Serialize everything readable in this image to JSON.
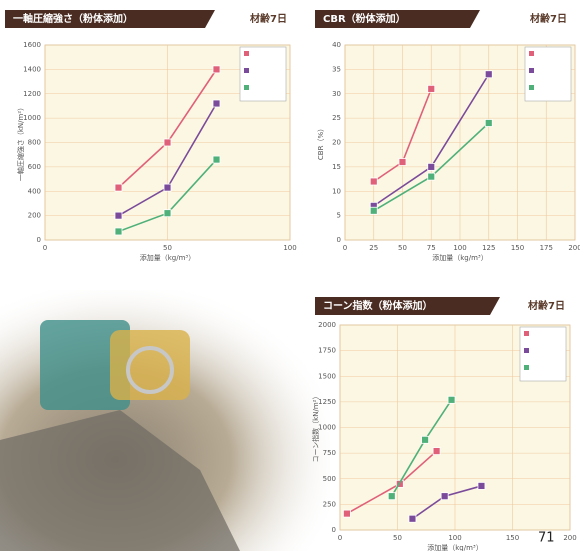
{
  "chart_data": [
    {
      "type": "line",
      "title": "一軸圧縮強さ（粉体添加）",
      "badge": "材齢7日",
      "ylabel": "一軸圧縮強さ（kN/m²）",
      "xlabel": "添加量（kg/m³）",
      "xlim": [
        0,
        100
      ],
      "xticks": [
        0,
        50,
        100
      ],
      "ylim": [
        0,
        1600
      ],
      "yticks": [
        0,
        200,
        400,
        600,
        800,
        1000,
        1200,
        1400,
        1600
      ],
      "grid": true,
      "series": [
        {
          "color": "#e0607a",
          "x": [
            30,
            50,
            70
          ],
          "values": [
            430,
            800,
            1400
          ]
        },
        {
          "color": "#7b4b9b",
          "x": [
            30,
            50,
            70
          ],
          "values": [
            200,
            430,
            1120
          ]
        },
        {
          "color": "#4fb07a",
          "x": [
            30,
            50,
            70
          ],
          "values": [
            70,
            220,
            660
          ]
        }
      ]
    },
    {
      "type": "line",
      "title": "CBR（粉体添加）",
      "badge": "材齢7日",
      "ylabel": "CBR（%）",
      "xlabel": "添加量（kg/m³）",
      "xlim": [
        0,
        200
      ],
      "xticks": [
        0,
        25,
        50,
        75,
        100,
        125,
        150,
        175,
        200
      ],
      "ylim": [
        0,
        40
      ],
      "yticks": [
        0,
        5,
        10,
        15,
        20,
        25,
        30,
        35,
        40
      ],
      "grid": true,
      "series": [
        {
          "color": "#e0607a",
          "x": [
            25,
            50,
            75
          ],
          "values": [
            12,
            16,
            31
          ]
        },
        {
          "color": "#7b4b9b",
          "x": [
            25,
            75,
            125
          ],
          "values": [
            7,
            15,
            34
          ]
        },
        {
          "color": "#4fb07a",
          "x": [
            25,
            75,
            125
          ],
          "values": [
            6,
            13,
            24
          ]
        }
      ]
    },
    {
      "type": "line",
      "title": "コーン指数（粉体添加）",
      "badge": "材齢7日",
      "ylabel": "コーン指数（kN/m²）",
      "xlabel": "添加量（kg/m³）",
      "xlim": [
        0,
        200
      ],
      "xticks": [
        0,
        50,
        100,
        150,
        200
      ],
      "ylim": [
        0,
        2000
      ],
      "yticks": [
        0,
        250,
        500,
        750,
        1000,
        1250,
        1500,
        1750,
        2000
      ],
      "grid": true,
      "series": [
        {
          "color": "#e0607a",
          "x": [
            6,
            52,
            84
          ],
          "values": [
            160,
            450,
            770
          ]
        },
        {
          "color": "#7b4b9b",
          "x": [
            63,
            91,
            123
          ],
          "values": [
            110,
            330,
            430
          ]
        },
        {
          "color": "#4fb07a",
          "x": [
            45,
            74,
            97
          ],
          "values": [
            330,
            880,
            1270
          ]
        }
      ]
    }
  ],
  "page_number": "71"
}
